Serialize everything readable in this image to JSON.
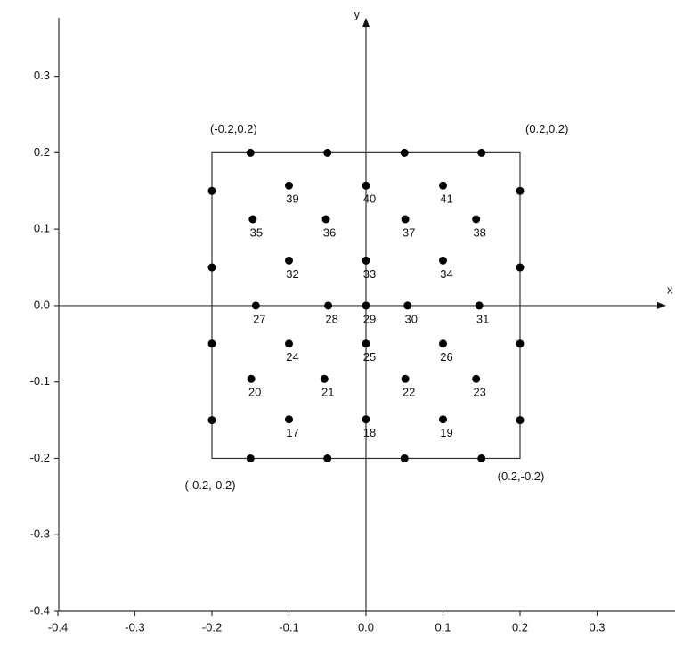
{
  "chart_data": {
    "type": "scatter",
    "xlim": [
      -0.4,
      0.4
    ],
    "ylim": [
      -0.4,
      0.38
    ],
    "xticks": [
      -0.4,
      -0.3,
      -0.2,
      -0.1,
      {
        "value": 0,
        "label": "0.0"
      },
      0.1,
      0.2,
      0.3
    ],
    "yticks": [
      -0.4,
      -0.3,
      -0.2,
      -0.1,
      {
        "value": 0,
        "label": "0.0"
      },
      0.1,
      0.2,
      0.3
    ],
    "x_axis_label": "x",
    "y_axis_label": "y",
    "square": {
      "x": [
        -0.2,
        0.2
      ],
      "y": [
        -0.2,
        0.2
      ]
    },
    "annotations": [
      "(-0.2,0.2)",
      "(0.2,0.2)",
      "(-0.2,-0.2)",
      "(0.2,-0.2)"
    ],
    "color": "#000000",
    "series": [
      {
        "x": [
          -0.1,
          0,
          0.1,
          -0.147,
          -0.052,
          0.051,
          0.143,
          -0.1,
          0,
          0.1,
          -0.143,
          -0.049,
          0,
          0.054,
          0.147,
          -0.1,
          0,
          0.1,
          -0.149,
          -0.054,
          0.051,
          0.143,
          -0.1,
          0,
          0.1
        ],
        "y": [
          0.157,
          0.157,
          0.157,
          0.113,
          0.113,
          0.113,
          0.113,
          0.059,
          0.059,
          0.059,
          0,
          0,
          0,
          0,
          0,
          -0.05,
          -0.05,
          -0.05,
          -0.096,
          -0.096,
          -0.096,
          -0.096,
          -0.149,
          -0.149,
          -0.149
        ],
        "labels": [
          "39",
          "40",
          "41",
          "35",
          "36",
          "37",
          "38",
          "32",
          "33",
          "34",
          "27",
          "28",
          "29",
          "30",
          "31",
          "24",
          "25",
          "26",
          "20",
          "21",
          "22",
          "23",
          "17",
          "18",
          "19"
        ]
      },
      {
        "x": [
          -0.15,
          -0.05,
          0.05,
          0.15,
          -0.15,
          -0.05,
          0.05,
          0.15,
          -0.2,
          -0.2,
          -0.2,
          -0.2,
          0.2,
          0.2,
          0.2,
          0.2
        ],
        "y": [
          0.2,
          0.2,
          0.2,
          0.2,
          -0.2,
          -0.2,
          -0.2,
          -0.2,
          0.15,
          0.05,
          -0.05,
          -0.15,
          0.15,
          0.05,
          -0.05,
          -0.15
        ]
      }
    ]
  }
}
